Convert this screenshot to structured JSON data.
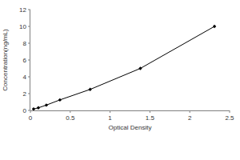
{
  "chart_data": {
    "type": "line",
    "x_label": "Optical Density",
    "y_label": "Concentration(ng/mL)",
    "x": [
      0.04,
      0.1,
      0.2,
      0.37,
      0.75,
      1.38,
      2.31
    ],
    "values": [
      0.16,
      0.31,
      0.63,
      1.25,
      2.5,
      5,
      10
    ],
    "color": "#000000",
    "marker": "diamond",
    "line_style": "solid",
    "xlim": [
      0,
      2.5
    ],
    "xticks": [
      0,
      0.5,
      1,
      1.5,
      2,
      2.5
    ],
    "ylim": [
      0,
      12
    ],
    "yticks": [
      0,
      2,
      4,
      6,
      8,
      10,
      12
    ],
    "grid": false
  }
}
